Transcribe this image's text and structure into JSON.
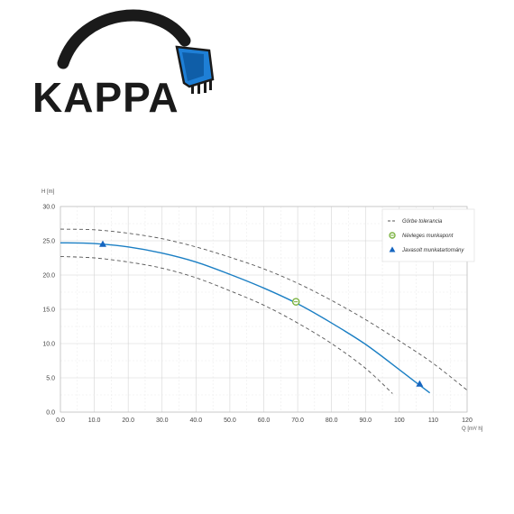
{
  "logo": {
    "text": "KAPPA",
    "colors": {
      "text": "#1a1a1a",
      "bucket": "#1e7fd6"
    }
  },
  "chart_data": {
    "type": "line",
    "xlabel": "Q [m³/ h]",
    "ylabel": "H [m]",
    "xlim": [
      0,
      120
    ],
    "ylim": [
      0,
      30
    ],
    "x_ticks": [
      "0.0",
      "10.0",
      "20.0",
      "30.0",
      "40.0",
      "50.0",
      "60.0",
      "70.0",
      "80.0",
      "90.0",
      "100",
      "110",
      "120"
    ],
    "y_ticks": [
      "0.0",
      "5.0",
      "10.0",
      "15.0",
      "20.0",
      "25.0",
      "30.0"
    ],
    "grid": true,
    "legend_position": "top-right",
    "legend": [
      {
        "label": "Görbe tolerancia",
        "symbol": "dashed-line"
      },
      {
        "label": "Névleges munkapont",
        "symbol": "circle"
      },
      {
        "label": "Javasolt munkatartomány",
        "symbol": "triangle"
      }
    ],
    "series": [
      {
        "name": "main",
        "style": "solid",
        "color": "#1b7fc4",
        "x": [
          0,
          10,
          20,
          30,
          40,
          50,
          60,
          70,
          80,
          90,
          100,
          105,
          109
        ],
        "y": [
          24.7,
          24.6,
          24.1,
          23.2,
          21.9,
          20.1,
          18.1,
          15.8,
          13.0,
          9.9,
          6.2,
          4.3,
          2.8
        ]
      },
      {
        "name": "upper",
        "style": "dashed",
        "color": "#555555",
        "x": [
          0,
          10,
          20,
          30,
          40,
          50,
          60,
          70,
          80,
          90,
          100,
          110,
          120
        ],
        "y": [
          26.7,
          26.6,
          26.1,
          25.3,
          24.1,
          22.6,
          20.9,
          18.8,
          16.3,
          13.5,
          10.4,
          7.1,
          3.2
        ]
      },
      {
        "name": "lower",
        "style": "dashed",
        "color": "#555555",
        "x": [
          0,
          10,
          20,
          30,
          40,
          50,
          60,
          70,
          80,
          90,
          98
        ],
        "y": [
          22.7,
          22.5,
          21.9,
          21.0,
          19.6,
          17.7,
          15.6,
          13.0,
          10.0,
          6.4,
          2.7
        ]
      }
    ],
    "markers": [
      {
        "type": "circle",
        "label": "Névleges munkapont",
        "x": 69.5,
        "y": 16.1,
        "color": "#7cb342"
      },
      {
        "type": "triangle",
        "label": "Javasolt munkatartomány",
        "x": 12.5,
        "y": 24.5,
        "color": "#1565c0"
      },
      {
        "type": "triangle",
        "label": "Javasolt munkatartomány",
        "x": 106,
        "y": 4.1,
        "color": "#1565c0"
      }
    ]
  }
}
